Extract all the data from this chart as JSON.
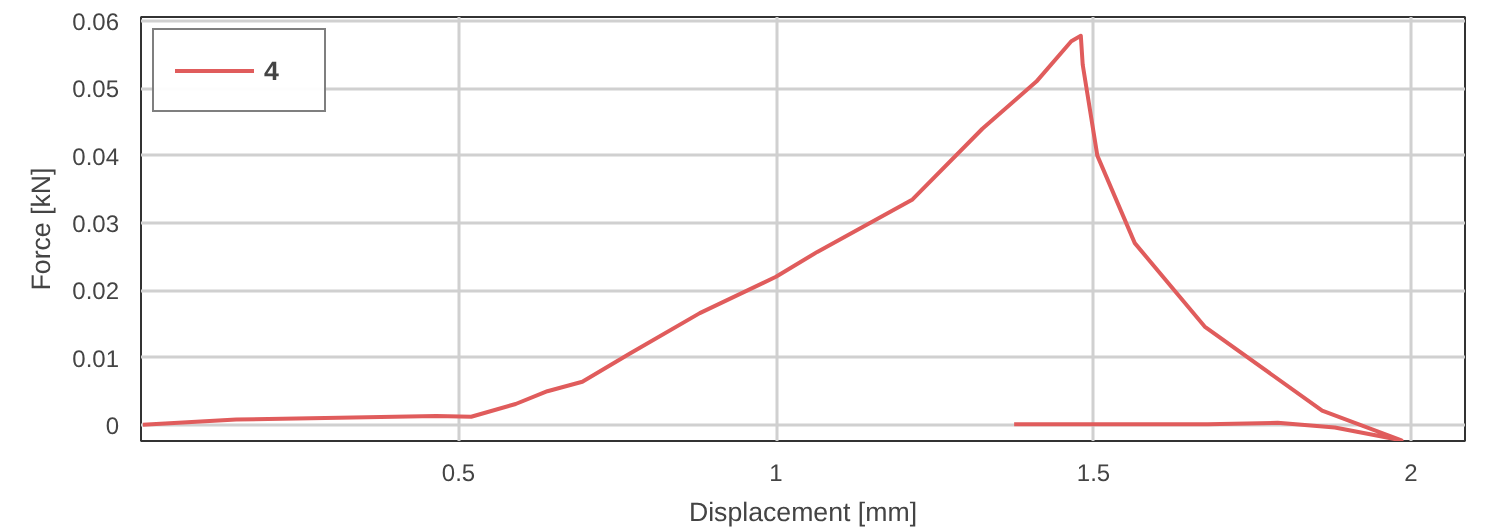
{
  "chart_data": {
    "type": "line",
    "xlabel": "Displacement [mm]",
    "ylabel": "Force [kN]",
    "xlim": [
      0,
      2.085
    ],
    "ylim": [
      -0.0024,
      0.0606
    ],
    "xticks": [
      0.5,
      1,
      1.5,
      2
    ],
    "yticks": [
      0,
      0.01,
      0.02,
      0.03,
      0.04,
      0.05,
      0.06
    ],
    "grid": true,
    "legend": "top left",
    "marker": "none",
    "line_style": "solid",
    "series": [
      {
        "name": "4",
        "color": "#e05c5c",
        "x": [
          0.003,
          0.15,
          0.29,
          0.465,
          0.52,
          0.59,
          0.64,
          0.695,
          0.77,
          0.88,
          1.0,
          1.065,
          1.215,
          1.325,
          1.41,
          1.465,
          1.48,
          1.483,
          1.506,
          1.565,
          1.675,
          1.86,
          1.985,
          1.88,
          1.79,
          1.68,
          1.375
        ],
        "values": [
          0,
          0.0008,
          0.001,
          0.0013,
          0.0012,
          0.0031,
          0.005,
          0.0064,
          0.0106,
          0.0166,
          0.022,
          0.0257,
          0.0335,
          0.044,
          0.051,
          0.057,
          0.0578,
          0.0535,
          0.04,
          0.027,
          0.0146,
          0.0021,
          -0.0023,
          -0.0004,
          0.0003,
          0.0001,
          0.0001
        ]
      }
    ]
  }
}
